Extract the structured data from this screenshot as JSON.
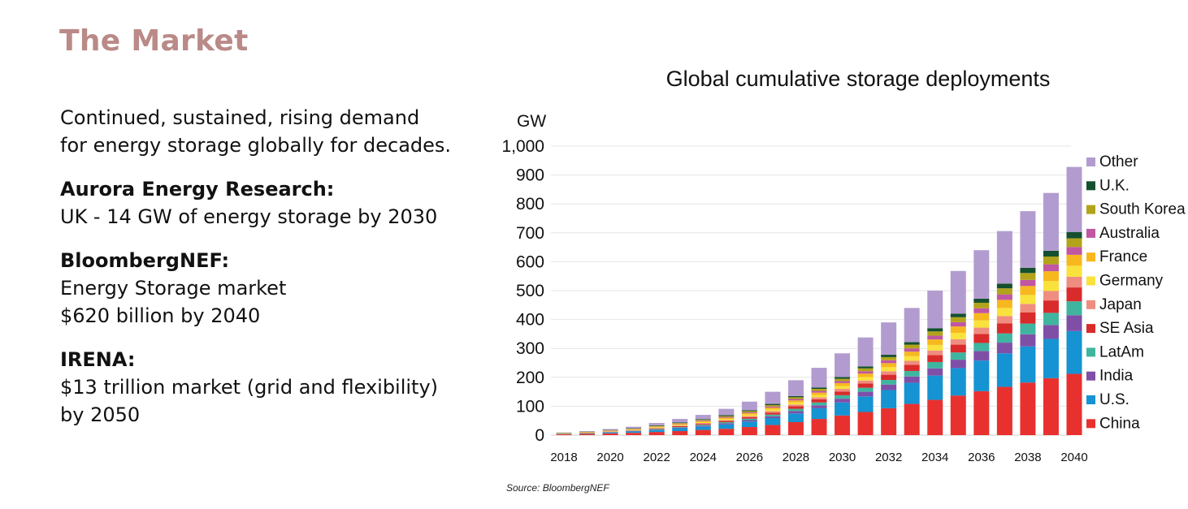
{
  "slide": {
    "title": "The Market",
    "intro_line1": "Continued, sustained, rising demand",
    "intro_line2": "for energy storage globally for decades.",
    "aurora_heading": "Aurora Energy Research:",
    "aurora_text": "UK - 14 GW of energy storage by 2030",
    "bnef_heading": "BloombergNEF:",
    "bnef_line1": "Energy Storage market",
    "bnef_line2": "$620 billion by 2040",
    "irena_heading": "IRENA:",
    "irena_line1": "$13 trillion market (grid and flexibility)",
    "irena_line2": "by 2050"
  },
  "chart_data": {
    "type": "bar",
    "stacked": true,
    "title": "Global cumulative storage deployments",
    "ylabel": "GW",
    "xlabel": "",
    "ylim": [
      0,
      1000
    ],
    "y_ticks": [
      0,
      100,
      200,
      300,
      400,
      500,
      600,
      700,
      800,
      900,
      1000
    ],
    "y_tick_labels": [
      "0",
      "100",
      "200",
      "300",
      "400",
      "500",
      "600",
      "700",
      "800",
      "900",
      "1,000"
    ],
    "x_tick_labels": [
      "2018",
      "2020",
      "2022",
      "2024",
      "2026",
      "2028",
      "2030",
      "2032",
      "2034",
      "2036",
      "2038",
      "2040"
    ],
    "grid": true,
    "legend_position": "right",
    "source": "Source: BloombergNEF",
    "categories": [
      2018,
      2019,
      2020,
      2021,
      2022,
      2023,
      2024,
      2025,
      2026,
      2027,
      2028,
      2029,
      2030,
      2031,
      2032,
      2033,
      2034,
      2035,
      2036,
      2037,
      2038,
      2039,
      2040
    ],
    "series": [
      {
        "name": "China",
        "color": "#e8312f",
        "values": [
          3,
          4,
          6,
          8,
          11,
          14,
          18,
          22,
          28,
          35,
          45,
          56,
          68,
          80,
          93,
          108,
          122,
          137,
          152,
          167,
          182,
          197,
          212
        ]
      },
      {
        "name": "U.S.",
        "color": "#1593d2",
        "values": [
          1,
          2,
          3,
          5,
          7,
          10,
          12,
          15,
          19,
          24,
          30,
          37,
          45,
          54,
          63,
          73,
          84,
          95,
          106,
          116,
          125,
          136,
          148
        ]
      },
      {
        "name": "India",
        "color": "#7f4fa8",
        "values": [
          0,
          0,
          1,
          1,
          1,
          2,
          3,
          4,
          5,
          6,
          8,
          10,
          13,
          16,
          19,
          22,
          25,
          29,
          33,
          37,
          42,
          48,
          55
        ]
      },
      {
        "name": "LatAm",
        "color": "#3fb5a0",
        "values": [
          0,
          0,
          1,
          1,
          2,
          2,
          3,
          4,
          5,
          6,
          8,
          10,
          12,
          14,
          16,
          19,
          22,
          25,
          28,
          32,
          37,
          42,
          48
        ]
      },
      {
        "name": "SE Asia",
        "color": "#d92b2b",
        "values": [
          0,
          1,
          1,
          1,
          2,
          3,
          3,
          4,
          5,
          7,
          9,
          11,
          13,
          15,
          18,
          21,
          24,
          27,
          31,
          35,
          39,
          43,
          48
        ]
      },
      {
        "name": "Japan",
        "color": "#ef8d80",
        "values": [
          1,
          1,
          1,
          1,
          2,
          2,
          3,
          3,
          4,
          5,
          6,
          7,
          9,
          10,
          12,
          14,
          16,
          19,
          22,
          25,
          29,
          33,
          37
        ]
      },
      {
        "name": "Germany",
        "color": "#f9e23c",
        "values": [
          1,
          1,
          1,
          2,
          2,
          3,
          3,
          4,
          5,
          6,
          7,
          8,
          10,
          12,
          14,
          16,
          19,
          22,
          25,
          28,
          31,
          34,
          38
        ]
      },
      {
        "name": "France",
        "color": "#f7b81e",
        "values": [
          0,
          1,
          1,
          1,
          2,
          2,
          3,
          4,
          5,
          6,
          7,
          8,
          10,
          12,
          14,
          16,
          19,
          22,
          25,
          28,
          31,
          34,
          38
        ]
      },
      {
        "name": "Australia",
        "color": "#c156a2",
        "values": [
          0,
          0,
          1,
          1,
          1,
          2,
          2,
          3,
          3,
          4,
          5,
          6,
          7,
          8,
          10,
          11,
          13,
          15,
          17,
          19,
          21,
          24,
          27
        ]
      },
      {
        "name": "South Korea",
        "color": "#b2a31a",
        "values": [
          1,
          1,
          1,
          2,
          2,
          2,
          3,
          3,
          4,
          5,
          6,
          7,
          8,
          10,
          11,
          13,
          15,
          17,
          19,
          21,
          24,
          27,
          30
        ]
      },
      {
        "name": "U.K.",
        "color": "#14502e",
        "values": [
          1,
          1,
          1,
          1,
          2,
          2,
          2,
          3,
          3,
          4,
          4,
          5,
          6,
          7,
          8,
          9,
          11,
          12,
          14,
          16,
          18,
          20,
          22
        ]
      },
      {
        "name": "Other",
        "color": "#b29ccf",
        "values": [
          1,
          2,
          3,
          5,
          8,
          12,
          15,
          22,
          30,
          42,
          55,
          68,
          82,
          100,
          112,
          118,
          130,
          148,
          168,
          182,
          196,
          200,
          225
        ]
      }
    ]
  }
}
